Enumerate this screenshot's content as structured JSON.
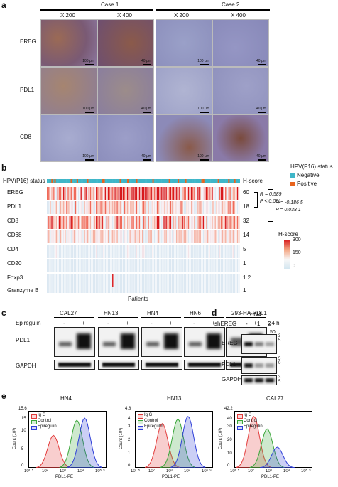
{
  "panel_a": {
    "label": "a",
    "case1": "Case 1",
    "case2": "Case 2",
    "mags": [
      "X 200",
      "X 400",
      "X 200",
      "X 400"
    ],
    "rows": [
      "EREG",
      "PDL1",
      "CD8"
    ],
    "scales": [
      [
        "100 μm",
        "40 μm",
        "100 μm",
        "40 μm"
      ],
      [
        "100 μm",
        "40 μm",
        "100 μm",
        "40 μm"
      ],
      [
        "100 μm",
        "40 μm",
        "100 μm",
        "40 μm"
      ]
    ]
  },
  "panel_b": {
    "label": "b",
    "status_label": "HPV(P16) status",
    "hscore_header": "H-score",
    "rows": [
      {
        "name": "EREG",
        "hscore": "60"
      },
      {
        "name": "PDL1",
        "hscore": "18"
      },
      {
        "name": "CD8",
        "hscore": "32"
      },
      {
        "name": "CD68",
        "hscore": "14"
      },
      {
        "name": "CD4",
        "hscore": "5"
      },
      {
        "name": "CD20",
        "hscore": "1"
      },
      {
        "name": "Foxp3",
        "hscore": "1.2"
      },
      {
        "name": "Granzyme B",
        "hscore": "1"
      }
    ],
    "xlabel": "Patients",
    "legend_title": "HPV(P16) status",
    "legend_items": [
      {
        "label": "Negative",
        "color": "#3fb6c8"
      },
      {
        "label": "Positive",
        "color": "#e8641e"
      }
    ],
    "stat1_r": "R = 0.589",
    "stat1_p": "P < 0.001",
    "stat2_r": "R = -0.186 5",
    "stat2_p": "P = 0.038 1",
    "scale_title": "H-score",
    "scale_ticks": [
      "300",
      "150",
      "0"
    ]
  },
  "panel_c": {
    "label": "c",
    "cell_lines": [
      "CAL27",
      "HN13",
      "HN4",
      "HN6",
      "293-HA-PDL1"
    ],
    "treatment": "Epiregulin",
    "signs": [
      "-",
      "+"
    ],
    "time": "24 h",
    "proteins": [
      "PDL1",
      "GAPDH"
    ],
    "mw": [
      "50",
      "35"
    ]
  },
  "panel_d": {
    "label": "d",
    "cell_line": "HN4",
    "treatment": "shEREG",
    "lanes": [
      "-",
      "1",
      "2"
    ],
    "proteins": [
      "EREG",
      "PDL1",
      "GAPDH"
    ],
    "mw": [
      "3\n5",
      "5\n0",
      "3\n5"
    ]
  },
  "panel_e": {
    "label": "e",
    "xlabel": "PDL1-PE",
    "ylabel": "Count (10³)",
    "legend": [
      "Ig G",
      "Control",
      "Epiregulin"
    ],
    "colors": {
      "igg": "#e23b3b",
      "control": "#3aa63a",
      "epiregulin": "#2f3fd8"
    },
    "plots": [
      {
        "title": "HN4",
        "ymax": "15.6",
        "yticks": [
          "15",
          "10",
          "5",
          "0"
        ],
        "xticks": [
          "10¹·⁵",
          "10²",
          "10³",
          "10⁴",
          "10⁵·⁹"
        ]
      },
      {
        "title": "HN13",
        "ymax": "4.8",
        "yticks": [
          "4",
          "3",
          "2",
          "1",
          "0"
        ],
        "xticks": [
          "10¹·⁵",
          "10²",
          "10³",
          "10⁴",
          "10⁵·⁹"
        ]
      },
      {
        "title": "CAL27",
        "ymax": "42.2",
        "yticks": [
          "40",
          "30",
          "20",
          "10",
          "0"
        ],
        "xticks": [
          "10¹·⁵",
          "10²",
          "10³",
          "10⁴",
          "10⁵·⁹"
        ]
      }
    ]
  }
}
